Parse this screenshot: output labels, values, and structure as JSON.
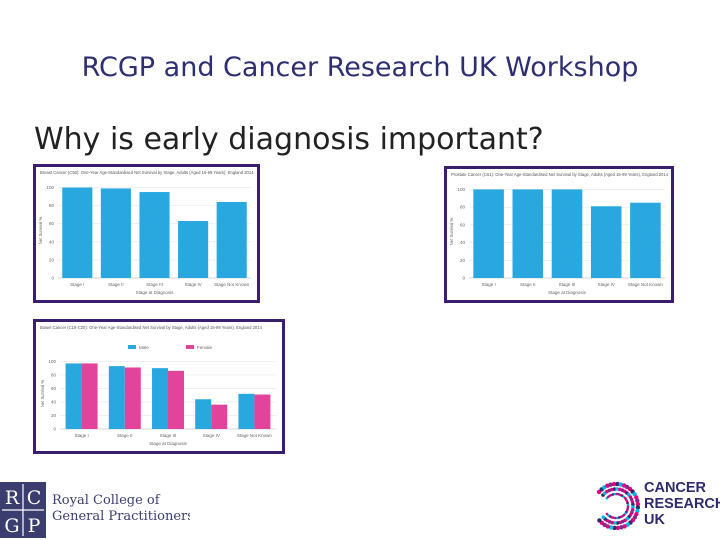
{
  "slide": {
    "title": "RCGP and Cancer Research UK Workshop",
    "subtitle": "Why is early diagnosis important?"
  },
  "logos": {
    "rcgp_letters": [
      "R",
      "C",
      "G",
      "P"
    ],
    "rcgp_line1": "Royal College of",
    "rcgp_line2": "General Practitioners",
    "cruk_line1": "CANCER",
    "cruk_line2": "RESEARCH",
    "cruk_line3": "UK"
  },
  "colors": {
    "title": "#2d2f70",
    "frame": "#3b1f6e",
    "bar_blue": "#29a8e0",
    "bar_pink": "#e2449b",
    "cruk_text": "#2e2a6e"
  },
  "chart_data": [
    {
      "type": "bar",
      "title": "Breast Cancer (C50): One-Year Age-Standardised Net Survival by Stage, Adults (Aged 15-99 Years), England 2014",
      "xlabel": "Stage at Diagnosis",
      "ylabel": "Net Survival %",
      "categories": [
        "Stage I",
        "Stage II",
        "Stage III",
        "Stage IV",
        "Stage Not Known"
      ],
      "yticks": [
        "0",
        "20",
        "40",
        "60",
        "80",
        "100"
      ],
      "ylim": [
        0,
        105
      ],
      "series": [
        {
          "values": [
            100,
            99,
            95,
            63,
            84
          ]
        }
      ]
    },
    {
      "type": "bar",
      "title": "Prostate Cancer (C61): One-Year Age-Standardised Net Survival by Stage, Adults (Aged 15-99 Years), England 2014",
      "xlabel": "Stage at Diagnosis",
      "ylabel": "Net Survival %",
      "categories": [
        "Stage I",
        "Stage II",
        "Stage III",
        "Stage IV",
        "Stage Not Known"
      ],
      "yticks": [
        "0",
        "20",
        "40",
        "60",
        "80",
        "100"
      ],
      "ylim": [
        0,
        105
      ],
      "series": [
        {
          "values": [
            100,
            100,
            100,
            81,
            85
          ]
        }
      ]
    },
    {
      "type": "bar",
      "title": "Bowel Cancer (C18-C20): One-Year Age-Standardised Net Survival by Stage, Adults (Aged 15-99 Years), England 2014",
      "xlabel": "Stage at Diagnosis",
      "ylabel": "Net Survival %",
      "categories": [
        "Stage I",
        "Stage II",
        "Stage III",
        "Stage IV",
        "Stage Not Known"
      ],
      "yticks": [
        "0",
        "20",
        "40",
        "60",
        "80",
        "100"
      ],
      "ylim": [
        0,
        105
      ],
      "legend": "top",
      "series": [
        {
          "name": "Male",
          "values": [
            97,
            93,
            90,
            44,
            52
          ]
        },
        {
          "name": "Female",
          "values": [
            97,
            91,
            86,
            36,
            51
          ]
        }
      ]
    }
  ]
}
